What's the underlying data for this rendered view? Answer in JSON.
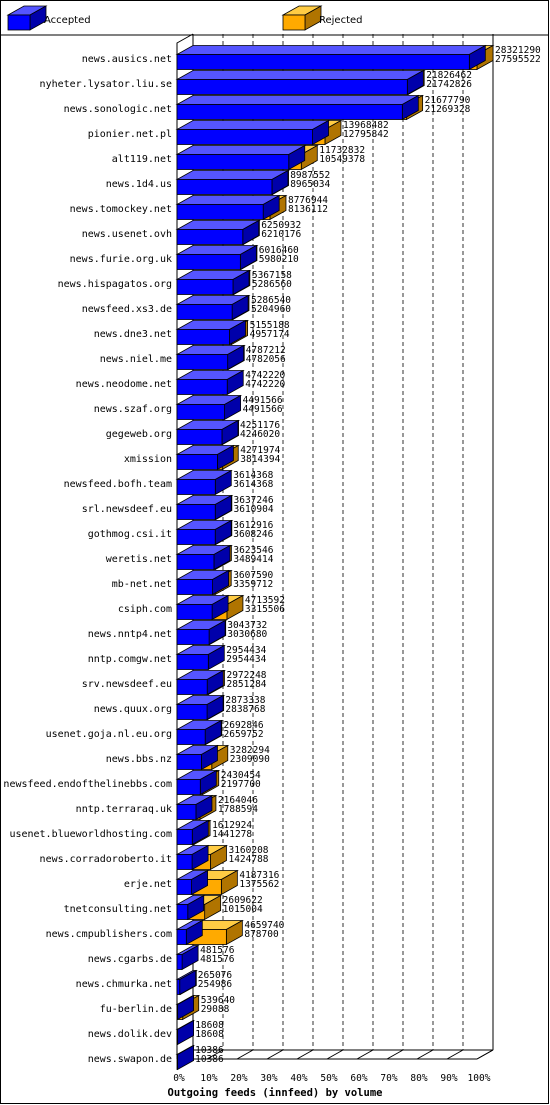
{
  "chart_data": {
    "type": "bar",
    "orientation": "horizontal",
    "xlabel": "Outgoing feeds (innfeed) by volume",
    "x_ticks": [
      "0%",
      "10%",
      "20%",
      "30%",
      "40%",
      "50%",
      "60%",
      "70%",
      "80%",
      "90%",
      "100%"
    ],
    "xlim": [
      0,
      100
    ],
    "legend": [
      {
        "name": "Accepted",
        "color": "#0000ff"
      },
      {
        "name": "Rejected",
        "color": "#ffaa00"
      }
    ],
    "legend_position": "top",
    "grid": "vertical-dashed",
    "rows": [
      {
        "label": "news.ausics.net",
        "offered": "28321290",
        "accepted": "27595522"
      },
      {
        "label": "nyheter.lysator.liu.se",
        "offered": "21826462",
        "accepted": "21742826"
      },
      {
        "label": "news.sonologic.net",
        "offered": "21677790",
        "accepted": "21269328"
      },
      {
        "label": "pionier.net.pl",
        "offered": "13968482",
        "accepted": "12795842"
      },
      {
        "label": "alt119.net",
        "offered": "11732832",
        "accepted": "10549378"
      },
      {
        "label": "news.1d4.us",
        "offered": "8987552",
        "accepted": "8965034"
      },
      {
        "label": "news.tomockey.net",
        "offered": "8776944",
        "accepted": "8136112"
      },
      {
        "label": "news.usenet.ovh",
        "offered": "6250932",
        "accepted": "6210176"
      },
      {
        "label": "news.furie.org.uk",
        "offered": "6016460",
        "accepted": "5980210"
      },
      {
        "label": "news.hispagatos.org",
        "offered": "5367158",
        "accepted": "5286560"
      },
      {
        "label": "newsfeed.xs3.de",
        "offered": "5286540",
        "accepted": "5204960"
      },
      {
        "label": "news.dne3.net",
        "offered": "5155188",
        "accepted": "4957174"
      },
      {
        "label": "news.niel.me",
        "offered": "4787212",
        "accepted": "4782056"
      },
      {
        "label": "news.neodome.net",
        "offered": "4742220",
        "accepted": "4742220"
      },
      {
        "label": "news.szaf.org",
        "offered": "4491566",
        "accepted": "4491566"
      },
      {
        "label": "gegeweb.org",
        "offered": "4251176",
        "accepted": "4246020"
      },
      {
        "label": "xmission",
        "offered": "4271974",
        "accepted": "3814394"
      },
      {
        "label": "newsfeed.bofh.team",
        "offered": "3614368",
        "accepted": "3614368"
      },
      {
        "label": "srl.newsdeef.eu",
        "offered": "3637246",
        "accepted": "3610904"
      },
      {
        "label": "gothmog.csi.it",
        "offered": "3612916",
        "accepted": "3608246"
      },
      {
        "label": "weretis.net",
        "offered": "3623546",
        "accepted": "3489414"
      },
      {
        "label": "mb-net.net",
        "offered": "3607590",
        "accepted": "3359712"
      },
      {
        "label": "csiph.com",
        "offered": "4713592",
        "accepted": "3315506"
      },
      {
        "label": "news.nntp4.net",
        "offered": "3043732",
        "accepted": "3030680"
      },
      {
        "label": "nntp.comgw.net",
        "offered": "2954434",
        "accepted": "2954434"
      },
      {
        "label": "srv.newsdeef.eu",
        "offered": "2972248",
        "accepted": "2851284"
      },
      {
        "label": "news.quux.org",
        "offered": "2873338",
        "accepted": "2838768"
      },
      {
        "label": "usenet.goja.nl.eu.org",
        "offered": "2692846",
        "accepted": "2659752"
      },
      {
        "label": "news.bbs.nz",
        "offered": "3282294",
        "accepted": "2309090"
      },
      {
        "label": "newsfeed.endofthelinebbs.com",
        "offered": "2430454",
        "accepted": "2197700"
      },
      {
        "label": "nntp.terraraq.uk",
        "offered": "2164046",
        "accepted": "1788594"
      },
      {
        "label": "usenet.blueworldhosting.com",
        "offered": "1612924",
        "accepted": "1441278"
      },
      {
        "label": "news.corradoroberto.it",
        "offered": "3160208",
        "accepted": "1424788"
      },
      {
        "label": "erje.net",
        "offered": "4187316",
        "accepted": "1375562"
      },
      {
        "label": "tnetconsulting.net",
        "offered": "2609622",
        "accepted": "1015004"
      },
      {
        "label": "news.cmpublishers.com",
        "offered": "4659740",
        "accepted": "878700"
      },
      {
        "label": "news.cgarbs.de",
        "offered": "481576",
        "accepted": "481576"
      },
      {
        "label": "news.chmurka.net",
        "offered": "265076",
        "accepted": "254986"
      },
      {
        "label": "fu-berlin.de",
        "offered": "539640",
        "accepted": "29088"
      },
      {
        "label": "news.dolik.dev",
        "offered": "18608",
        "accepted": "18608"
      },
      {
        "label": "news.swapon.de",
        "offered": "10386",
        "accepted": "10386"
      }
    ]
  }
}
